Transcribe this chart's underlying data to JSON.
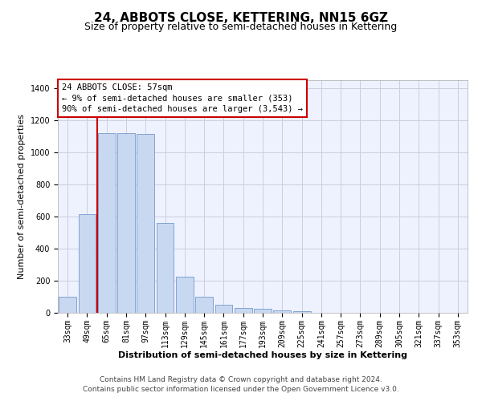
{
  "title": "24, ABBOTS CLOSE, KETTERING, NN15 6GZ",
  "subtitle": "Size of property relative to semi-detached houses in Kettering",
  "xlabel": "Distribution of semi-detached houses by size in Kettering",
  "ylabel": "Number of semi-detached properties",
  "bar_color": "#c8d8f0",
  "bar_edge_color": "#7799cc",
  "categories": [
    "33sqm",
    "49sqm",
    "65sqm",
    "81sqm",
    "97sqm",
    "113sqm",
    "129sqm",
    "145sqm",
    "161sqm",
    "177sqm",
    "193sqm",
    "209sqm",
    "225sqm",
    "241sqm",
    "257sqm",
    "273sqm",
    "289sqm",
    "305sqm",
    "321sqm",
    "337sqm",
    "353sqm"
  ],
  "values": [
    100,
    617,
    1120,
    1120,
    1115,
    560,
    225,
    100,
    48,
    30,
    27,
    17,
    10,
    0,
    0,
    0,
    0,
    0,
    0,
    0,
    0
  ],
  "ylim": [
    0,
    1450
  ],
  "yticks": [
    0,
    200,
    400,
    600,
    800,
    1000,
    1200,
    1400
  ],
  "property_label": "24 ABBOTS CLOSE: 57sqm",
  "pct_smaller": 9,
  "n_smaller": 353,
  "pct_larger": 90,
  "n_larger": "3,543",
  "vline_x_index": 1.5,
  "footer_line1": "Contains HM Land Registry data © Crown copyright and database right 2024.",
  "footer_line2": "Contains public sector information licensed under the Open Government Licence v3.0.",
  "background_color": "#eef2ff",
  "grid_color": "#ccccdd",
  "vline_color": "#cc0000",
  "box_edge_color": "#cc0000",
  "title_fontsize": 11,
  "subtitle_fontsize": 9,
  "axis_label_fontsize": 8,
  "tick_fontsize": 7,
  "footer_fontsize": 6.5,
  "annotation_fontsize": 7.5
}
